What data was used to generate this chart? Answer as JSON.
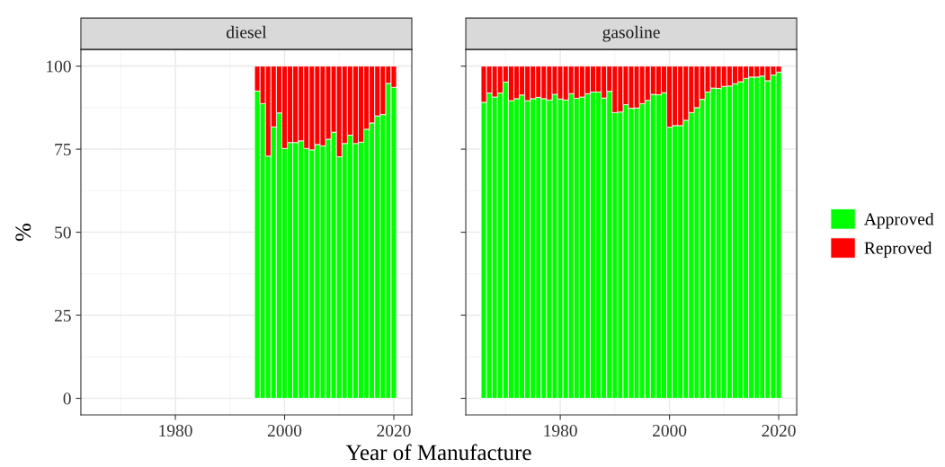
{
  "chart_data": [
    {
      "type": "bar",
      "title": "diesel",
      "legend": "right",
      "xlabel": "Year of Manufacture",
      "ylabel": "%",
      "stacked": true,
      "x": [
        1995,
        1996,
        1997,
        1998,
        1999,
        2000,
        2001,
        2002,
        2003,
        2004,
        2005,
        2006,
        2007,
        2008,
        2009,
        2010,
        2011,
        2012,
        2013,
        2014,
        2015,
        2016,
        2017,
        2018,
        2019,
        2020
      ],
      "series": [
        {
          "name": "Approved",
          "color": "#00ff00",
          "values": [
            92.5,
            88.7,
            72.9,
            81.7,
            85.9,
            75.2,
            77.0,
            77.0,
            77.5,
            75.2,
            74.8,
            76.4,
            76.0,
            78.0,
            80.1,
            72.7,
            76.7,
            79.2,
            76.7,
            77.1,
            81.0,
            82.9,
            85.0,
            85.4,
            94.8,
            93.6
          ]
        },
        {
          "name": "Reproved",
          "color": "#ff0000",
          "values": [
            7.5,
            11.3,
            27.1,
            18.3,
            14.1,
            24.8,
            23.0,
            23.0,
            22.5,
            24.8,
            25.2,
            23.6,
            24.0,
            22.0,
            19.9,
            27.3,
            23.3,
            20.8,
            23.3,
            22.9,
            19.0,
            17.1,
            15.0,
            14.6,
            5.2,
            6.4
          ]
        }
      ],
      "xlim": [
        1962.7,
        2023.3
      ],
      "ylim": [
        -5,
        105
      ],
      "xticks": [
        1980,
        2000,
        2020
      ],
      "yticks": [
        0,
        25,
        50,
        75,
        100
      ],
      "grid": true
    },
    {
      "type": "bar",
      "title": "gasoline",
      "stacked": true,
      "legend": "right",
      "tick_labels": "x",
      "x": [
        1966,
        1967,
        1968,
        1969,
        1970,
        1971,
        1972,
        1973,
        1974,
        1975,
        1976,
        1977,
        1978,
        1979,
        1980,
        1981,
        1982,
        1983,
        1984,
        1985,
        1986,
        1987,
        1988,
        1989,
        1990,
        1991,
        1992,
        1993,
        1994,
        1995,
        1996,
        1997,
        1998,
        1999,
        2000,
        2001,
        2002,
        2003,
        2004,
        2005,
        2006,
        2007,
        2008,
        2009,
        2010,
        2011,
        2012,
        2013,
        2014,
        2015,
        2016,
        2017,
        2018,
        2019,
        2020
      ],
      "series": [
        {
          "name": "Approved",
          "color": "#00ff00",
          "values": [
            89.1,
            91.9,
            90.7,
            91.9,
            95.2,
            89.6,
            90.2,
            91.3,
            89.6,
            90.2,
            90.6,
            90.2,
            89.8,
            91.5,
            90.1,
            89.8,
            91.7,
            90.3,
            90.7,
            91.7,
            92.2,
            92.2,
            90.4,
            92.4,
            86.0,
            86.2,
            88.4,
            87.3,
            87.4,
            88.7,
            89.7,
            91.5,
            91.4,
            92.0,
            81.6,
            82.1,
            82.1,
            83.7,
            86.0,
            87.5,
            90.0,
            92.2,
            93.4,
            93.3,
            93.9,
            94.0,
            94.7,
            95.3,
            96.3,
            96.7,
            96.7,
            97.0,
            95.6,
            97.3,
            98.2
          ]
        },
        {
          "name": "Reproved",
          "color": "#ff0000",
          "values": [
            10.9,
            8.1,
            9.3,
            8.1,
            4.8,
            10.4,
            9.8,
            8.7,
            10.4,
            9.8,
            9.4,
            9.8,
            10.2,
            8.5,
            9.9,
            10.2,
            8.3,
            9.7,
            9.3,
            8.3,
            7.8,
            7.8,
            9.6,
            7.6,
            14.0,
            13.8,
            11.6,
            12.7,
            12.6,
            11.3,
            10.3,
            8.5,
            8.6,
            8.0,
            18.4,
            17.9,
            17.9,
            16.3,
            14.0,
            12.5,
            10.0,
            7.8,
            6.6,
            6.7,
            6.1,
            6.0,
            5.3,
            4.7,
            3.7,
            3.3,
            3.3,
            3.0,
            4.4,
            2.7,
            1.8
          ]
        }
      ],
      "xlim": [
        1962.7,
        2023.3
      ],
      "ylim": [
        -5,
        105
      ],
      "xticks": [
        1980,
        2000,
        2020
      ],
      "yticks": [
        0,
        25,
        50,
        75,
        100
      ],
      "grid": true
    }
  ]
}
